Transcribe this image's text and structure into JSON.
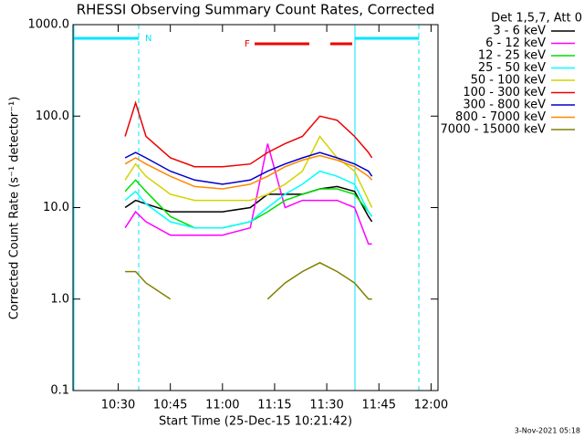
{
  "chart_data": {
    "type": "line",
    "title": "RHESSI Observing Summary Count Rates, Corrected",
    "x_label": "Start Time (25-Dec-15 10:21:42)",
    "y_label": "Corrected Count Rate (s⁻¹ detector⁻¹)",
    "legend_title": "Det 1,5,7, Att 0",
    "footer": "3-Nov-2021 05:18",
    "annotations": {
      "night": "N",
      "flare": "F"
    },
    "log_y": true,
    "xlim": [
      "10:17",
      "12:02"
    ],
    "xticks": [
      "10:30",
      "10:45",
      "11:00",
      "11:15",
      "11:30",
      "11:45",
      "12:00"
    ],
    "ylim": [
      0.1,
      1000
    ],
    "yticks": [
      {
        "value": 0.1,
        "label": "0.1"
      },
      {
        "value": 1,
        "label": "1.0"
      },
      {
        "value": 10,
        "label": "10.0"
      },
      {
        "value": 100,
        "label": "100.0"
      },
      {
        "value": 1000,
        "label": "1000.0"
      }
    ],
    "x": [
      "10:32",
      "10:35",
      "10:38",
      "10:45",
      "10:52",
      "11:00",
      "11:08",
      "11:13",
      "11:18",
      "11:23",
      "11:28",
      "11:33",
      "11:38",
      "11:42",
      "11:43"
    ],
    "series": [
      {
        "name": "3 - 6 keV",
        "color": "#000000",
        "values": [
          10,
          12,
          11,
          9,
          9,
          9,
          10,
          14,
          14,
          14,
          16,
          17,
          15,
          8,
          7
        ]
      },
      {
        "name": "6 - 12 keV",
        "color": "#ff00ff",
        "values": [
          6,
          9,
          7,
          5,
          5,
          5,
          6,
          50,
          10,
          12,
          12,
          12,
          10,
          4,
          4
        ]
      },
      {
        "name": "12 - 25 keV",
        "color": "#00dd00",
        "values": [
          15,
          20,
          15,
          8,
          6,
          6,
          7,
          9,
          12,
          14,
          16,
          16,
          14,
          9,
          8
        ]
      },
      {
        "name": "25 - 50 keV",
        "color": "#00ffff",
        "values": [
          12,
          15,
          11,
          7,
          6,
          6,
          7,
          10,
          14,
          18,
          25,
          22,
          18,
          9,
          8
        ]
      },
      {
        "name": "50 - 100 keV",
        "color": "#d4d400",
        "values": [
          20,
          30,
          22,
          14,
          12,
          12,
          12,
          14,
          18,
          25,
          60,
          35,
          25,
          12,
          10
        ]
      },
      {
        "name": "100 - 300 keV",
        "color": "#ee0000",
        "values": [
          60,
          140,
          60,
          35,
          28,
          28,
          30,
          40,
          50,
          60,
          100,
          90,
          60,
          40,
          35
        ]
      },
      {
        "name": "300 - 800 keV",
        "color": "#0000cc",
        "values": [
          35,
          40,
          35,
          25,
          20,
          18,
          20,
          25,
          30,
          35,
          40,
          35,
          30,
          25,
          22
        ]
      },
      {
        "name": "800 - 7000 keV",
        "color": "#ff8800",
        "values": [
          30,
          35,
          30,
          22,
          17,
          16,
          18,
          22,
          28,
          33,
          37,
          33,
          28,
          22,
          20
        ]
      },
      {
        "name": "7000 - 15000 keV",
        "color": "#808000",
        "values": [
          2,
          2,
          1.5,
          1,
          null,
          null,
          null,
          1,
          1.5,
          2,
          2.5,
          2,
          1.5,
          1,
          1
        ]
      }
    ]
  }
}
